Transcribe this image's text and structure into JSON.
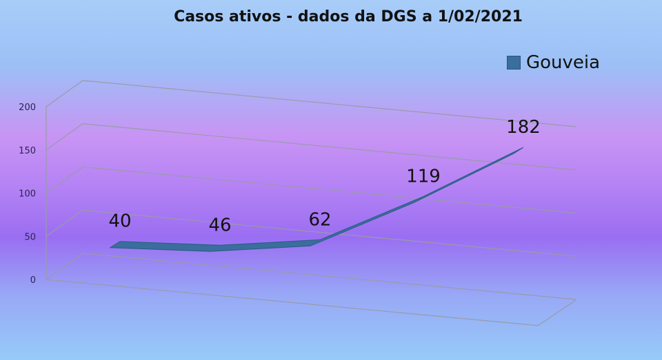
{
  "chart_data": {
    "type": "line",
    "style": "3d-ribbon",
    "title": "Casos ativos - dados da DGS a 1/02/2021",
    "series": [
      {
        "name": "Gouveia",
        "values": [
          40,
          46,
          62,
          119,
          182
        ],
        "color": "#3a6e9c"
      }
    ],
    "data_labels": [
      "40",
      "46",
      "62",
      "119",
      "182"
    ],
    "yticks": [
      "0",
      "50",
      "100",
      "150",
      "200"
    ],
    "ylim": [
      0,
      200
    ],
    "grid": true,
    "legend": "top-right"
  }
}
